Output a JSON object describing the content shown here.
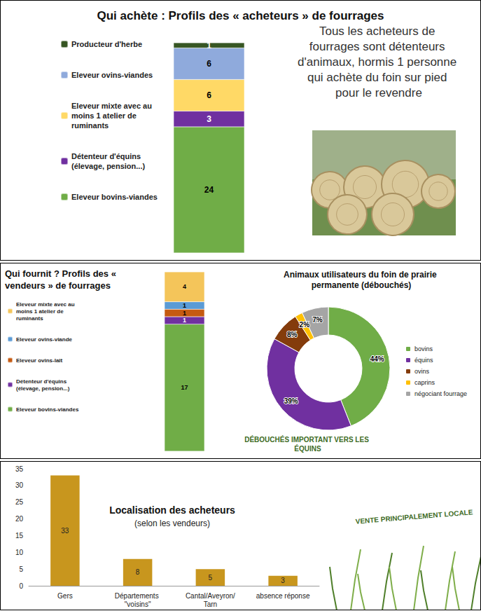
{
  "chart_data": [
    {
      "type": "bar",
      "stacked": true,
      "title": "Qui achète : Profils des « acheteurs » de fourrages",
      "categories": [
        null
      ],
      "series": [
        {
          "name": "Eleveur bovins-viandes",
          "color": "#70ad47",
          "values": [
            24
          ]
        },
        {
          "name": "Détenteur d'équins (élevage, pension...)",
          "color": "#7030a0",
          "values": [
            3
          ]
        },
        {
          "name": "Eleveur mixte avec au moins 1 atelier de ruminants",
          "color": "#ffd966",
          "values": [
            6
          ]
        },
        {
          "name": "Eleveur ovins-viandes",
          "color": "#8faadc",
          "values": [
            6
          ]
        },
        {
          "name": "Producteur d'herbe",
          "color": "#375623",
          "values": [
            1
          ]
        }
      ],
      "legend": "left",
      "data_labels": true,
      "tick_labels": false,
      "annotations": [
        "Tous les acheteurs de fourrages sont détenteurs d'animaux, hormis 1 personne qui achète du foin sur pied pour le revendre"
      ]
    },
    {
      "type": "bar",
      "stacked": true,
      "title": "Qui fournit ? Profils des « vendeurs » de fourrages",
      "categories": [
        null
      ],
      "series": [
        {
          "name": "Eleveur bovins-viandes",
          "color": "#70ad47",
          "values": [
            17
          ]
        },
        {
          "name": "Détenteur d'équins (élevage, pension...)",
          "color": "#7030a0",
          "values": [
            1
          ]
        },
        {
          "name": "Eleveur ovins-lait",
          "color": "#c55a11",
          "values": [
            1
          ]
        },
        {
          "name": "Eleveur ovins-viande",
          "color": "#5b9bd5",
          "values": [
            1
          ]
        },
        {
          "name": "Eleveur mixte avec au moins 1 atelier de ruminants",
          "color": "#f4c55a",
          "values": [
            4
          ]
        }
      ],
      "legend": "left",
      "data_labels": true,
      "tick_labels": false
    },
    {
      "type": "pie",
      "title": "Animaux utilisateurs du foin de prairie permanente (débouchés)",
      "categories": [
        "bovins",
        "équins",
        "ovins",
        "caprins",
        "négociant fourrage"
      ],
      "values": [
        44,
        39,
        8,
        2,
        7
      ],
      "value_labels": [
        "44%",
        "39%",
        "8%",
        "2%",
        "7%"
      ],
      "colors": [
        "#70ad47",
        "#7030a0",
        "#843c0c",
        "#ffc000",
        "#a5a5a5"
      ],
      "legend": "right",
      "data_labels": true,
      "annotations": [
        "DÉBOUCHÉS IMPORTANT VERS LES ÉQUINS"
      ]
    },
    {
      "type": "bar",
      "title": "Localisation des acheteurs",
      "subtitle": "(selon les vendeurs)",
      "categories": [
        "Gers",
        "Départements \"voisins\"",
        "Cantal/Aveyron/Tarn",
        "absence réponse"
      ],
      "values": [
        33,
        8,
        5,
        3
      ],
      "color": "#c8961e",
      "ylim": [
        0,
        35
      ],
      "yticks": [
        0,
        5,
        10,
        15,
        20,
        25,
        30,
        35
      ],
      "grid": false,
      "data_labels": true,
      "annotations": [
        "VENTE PRINCIPALEMENT LOCALE"
      ]
    }
  ]
}
